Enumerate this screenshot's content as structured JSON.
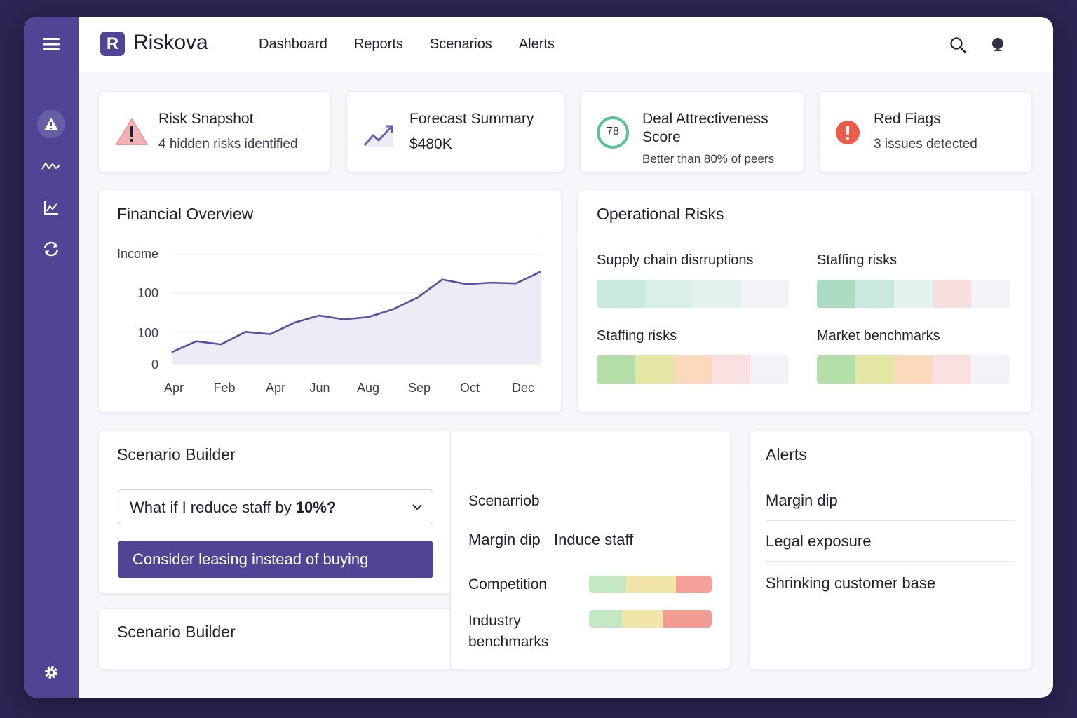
{
  "app": {
    "name": "Riskova",
    "logo_letter": "R"
  },
  "nav": [
    "Dashboard",
    "Reports",
    "Scenarios",
    "Alerts"
  ],
  "kpis": {
    "risk_snapshot": {
      "title": "Risk Snapshot",
      "sub": "4 hidden risks identified"
    },
    "forecast": {
      "title": "Forecast Summary",
      "value": "$480K"
    },
    "deal": {
      "title_line1": "Deal Attrectiveness",
      "title_line2": "Score",
      "score": "78",
      "sub": "Better than 80% of peers"
    },
    "red_flags": {
      "title": "Red Fiags",
      "sub": "3 issues detected"
    }
  },
  "financial": {
    "title": "Financial Overview",
    "chart_data": {
      "type": "area",
      "ylabel": "Income",
      "y_tick_labels": [
        "100",
        "100",
        "0"
      ],
      "x_tick_labels": [
        "Apr",
        "Feb",
        "Apr",
        "Jun",
        "Aug",
        "Sep",
        "Oct",
        "Dec"
      ],
      "series": [
        {
          "values": [
            15,
            29,
            25,
            41,
            38,
            53,
            62,
            57,
            60,
            70,
            85,
            108,
            102,
            104,
            103,
            118
          ]
        }
      ],
      "x": [
        0,
        1,
        2,
        3,
        4,
        5,
        6,
        7,
        8,
        9,
        10,
        11,
        12,
        13,
        14,
        15
      ],
      "ylim": [
        0,
        140
      ],
      "grid": true,
      "colors": {
        "line": "#5b4fa0",
        "fill": "#ebe9f5"
      }
    }
  },
  "operational": {
    "title": "Operational Risks",
    "heatmaps": [
      {
        "label": "Supply chain disrruptions",
        "segments": [
          "#c9eadd",
          "#d8f0e7",
          "#e5f3ef",
          "#f2f3f6"
        ]
      },
      {
        "label": "Staffing risks",
        "segments": [
          "#a9dcc0",
          "#c9eadd",
          "#e3f2ee",
          "#f8dfdf",
          "#f2f3f6"
        ]
      },
      {
        "label": "Staffing risks",
        "segments": [
          "#b4dfa8",
          "#e3e7a3",
          "#fbd9bc",
          "#f8e0e0",
          "#f2f3f6"
        ]
      },
      {
        "label": "Market benchmarks",
        "segments": [
          "#b4dfa8",
          "#e3e7a3",
          "#fbd9bc",
          "#f8e0e0",
          "#f2f3f6"
        ]
      }
    ]
  },
  "scenario": {
    "title": "Scenario Builder",
    "dropdown_prefix": "What if I reduce staff by ",
    "dropdown_bold": "10%?",
    "cta": "Consider leasing instead of buying",
    "second_title": "Scenario Builder",
    "panel_title": "Scenarriob",
    "tag1": "Margin dip",
    "tag2": "Induce staff",
    "rows": [
      {
        "label": "Competition",
        "segments": [
          "#c4e8c4",
          "#f1e6a8",
          "#f6a09a"
        ]
      },
      {
        "label_line1": "Industry",
        "label_line2": "benchmarks",
        "segments": [
          "#c4e8c4",
          "#f1e6a8",
          "#f39c94"
        ]
      }
    ]
  },
  "alerts": {
    "title": "Alerts",
    "items": [
      "Margin dip",
      "Legal exposure",
      "Shrinking customer base"
    ]
  }
}
